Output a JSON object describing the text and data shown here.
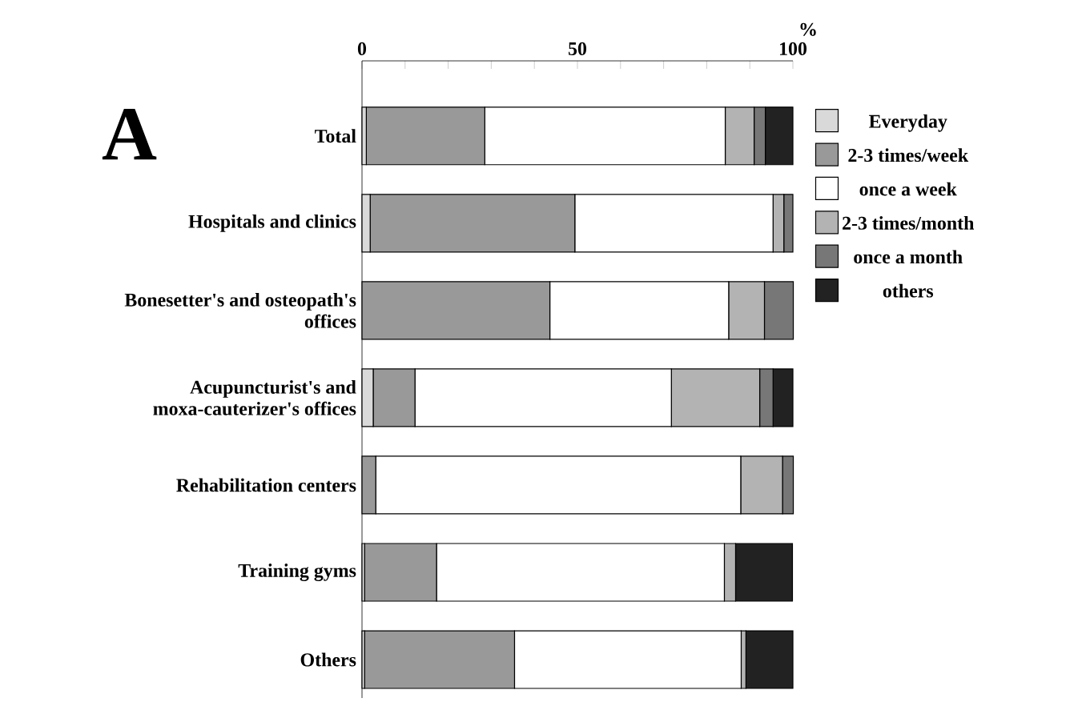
{
  "chart_data": {
    "type": "bar",
    "orientation": "horizontal",
    "stacked": true,
    "categories": [
      "Total",
      "Hospitals and clinics",
      "Bonesetter's and osteopath's offices",
      "Acupuncturist's and moxa-cauterizer's offices",
      "Rehabilitation centers",
      "Training gyms",
      "Others"
    ],
    "series": [
      {
        "name": "Everyday",
        "color": "#d9d9d9",
        "values": [
          1,
          1.9,
          0,
          2.6,
          0,
          0.6,
          0.6
        ]
      },
      {
        "name": "2-3 times/week",
        "color": "#999999",
        "values": [
          27.5,
          47.5,
          43.6,
          9.7,
          3.2,
          16.7,
          34.8
        ]
      },
      {
        "name": "once a week",
        "color": "#ffffff",
        "values": [
          55.8,
          46,
          41.5,
          59.5,
          84.7,
          66.8,
          52.6
        ]
      },
      {
        "name": "2-3 times/month",
        "color": "#b3b3b3",
        "values": [
          6.7,
          2.5,
          8.3,
          20.5,
          9.7,
          2.6,
          1.1
        ]
      },
      {
        "name": "once a month",
        "color": "#777777",
        "values": [
          2.6,
          2.1,
          6.7,
          3.1,
          2.5,
          0,
          0
        ]
      },
      {
        "name": "others",
        "color": "#222222",
        "values": [
          6.4,
          0,
          0,
          4.6,
          0,
          13.2,
          10.9
        ]
      }
    ],
    "xlim": [
      0,
      100
    ],
    "xticks": [
      0,
      {
        "value": 10,
        "label": null
      },
      {
        "value": 20,
        "label": null
      },
      {
        "value": 30,
        "label": null
      },
      {
        "value": 40,
        "label": null
      },
      50,
      {
        "value": 60,
        "label": null
      },
      {
        "value": 70,
        "label": null
      },
      {
        "value": 80,
        "label": null
      },
      {
        "value": 90,
        "label": null
      },
      100
    ],
    "xlabel": "%",
    "annotations": [
      "A"
    ],
    "legend": "right",
    "grid": false
  }
}
